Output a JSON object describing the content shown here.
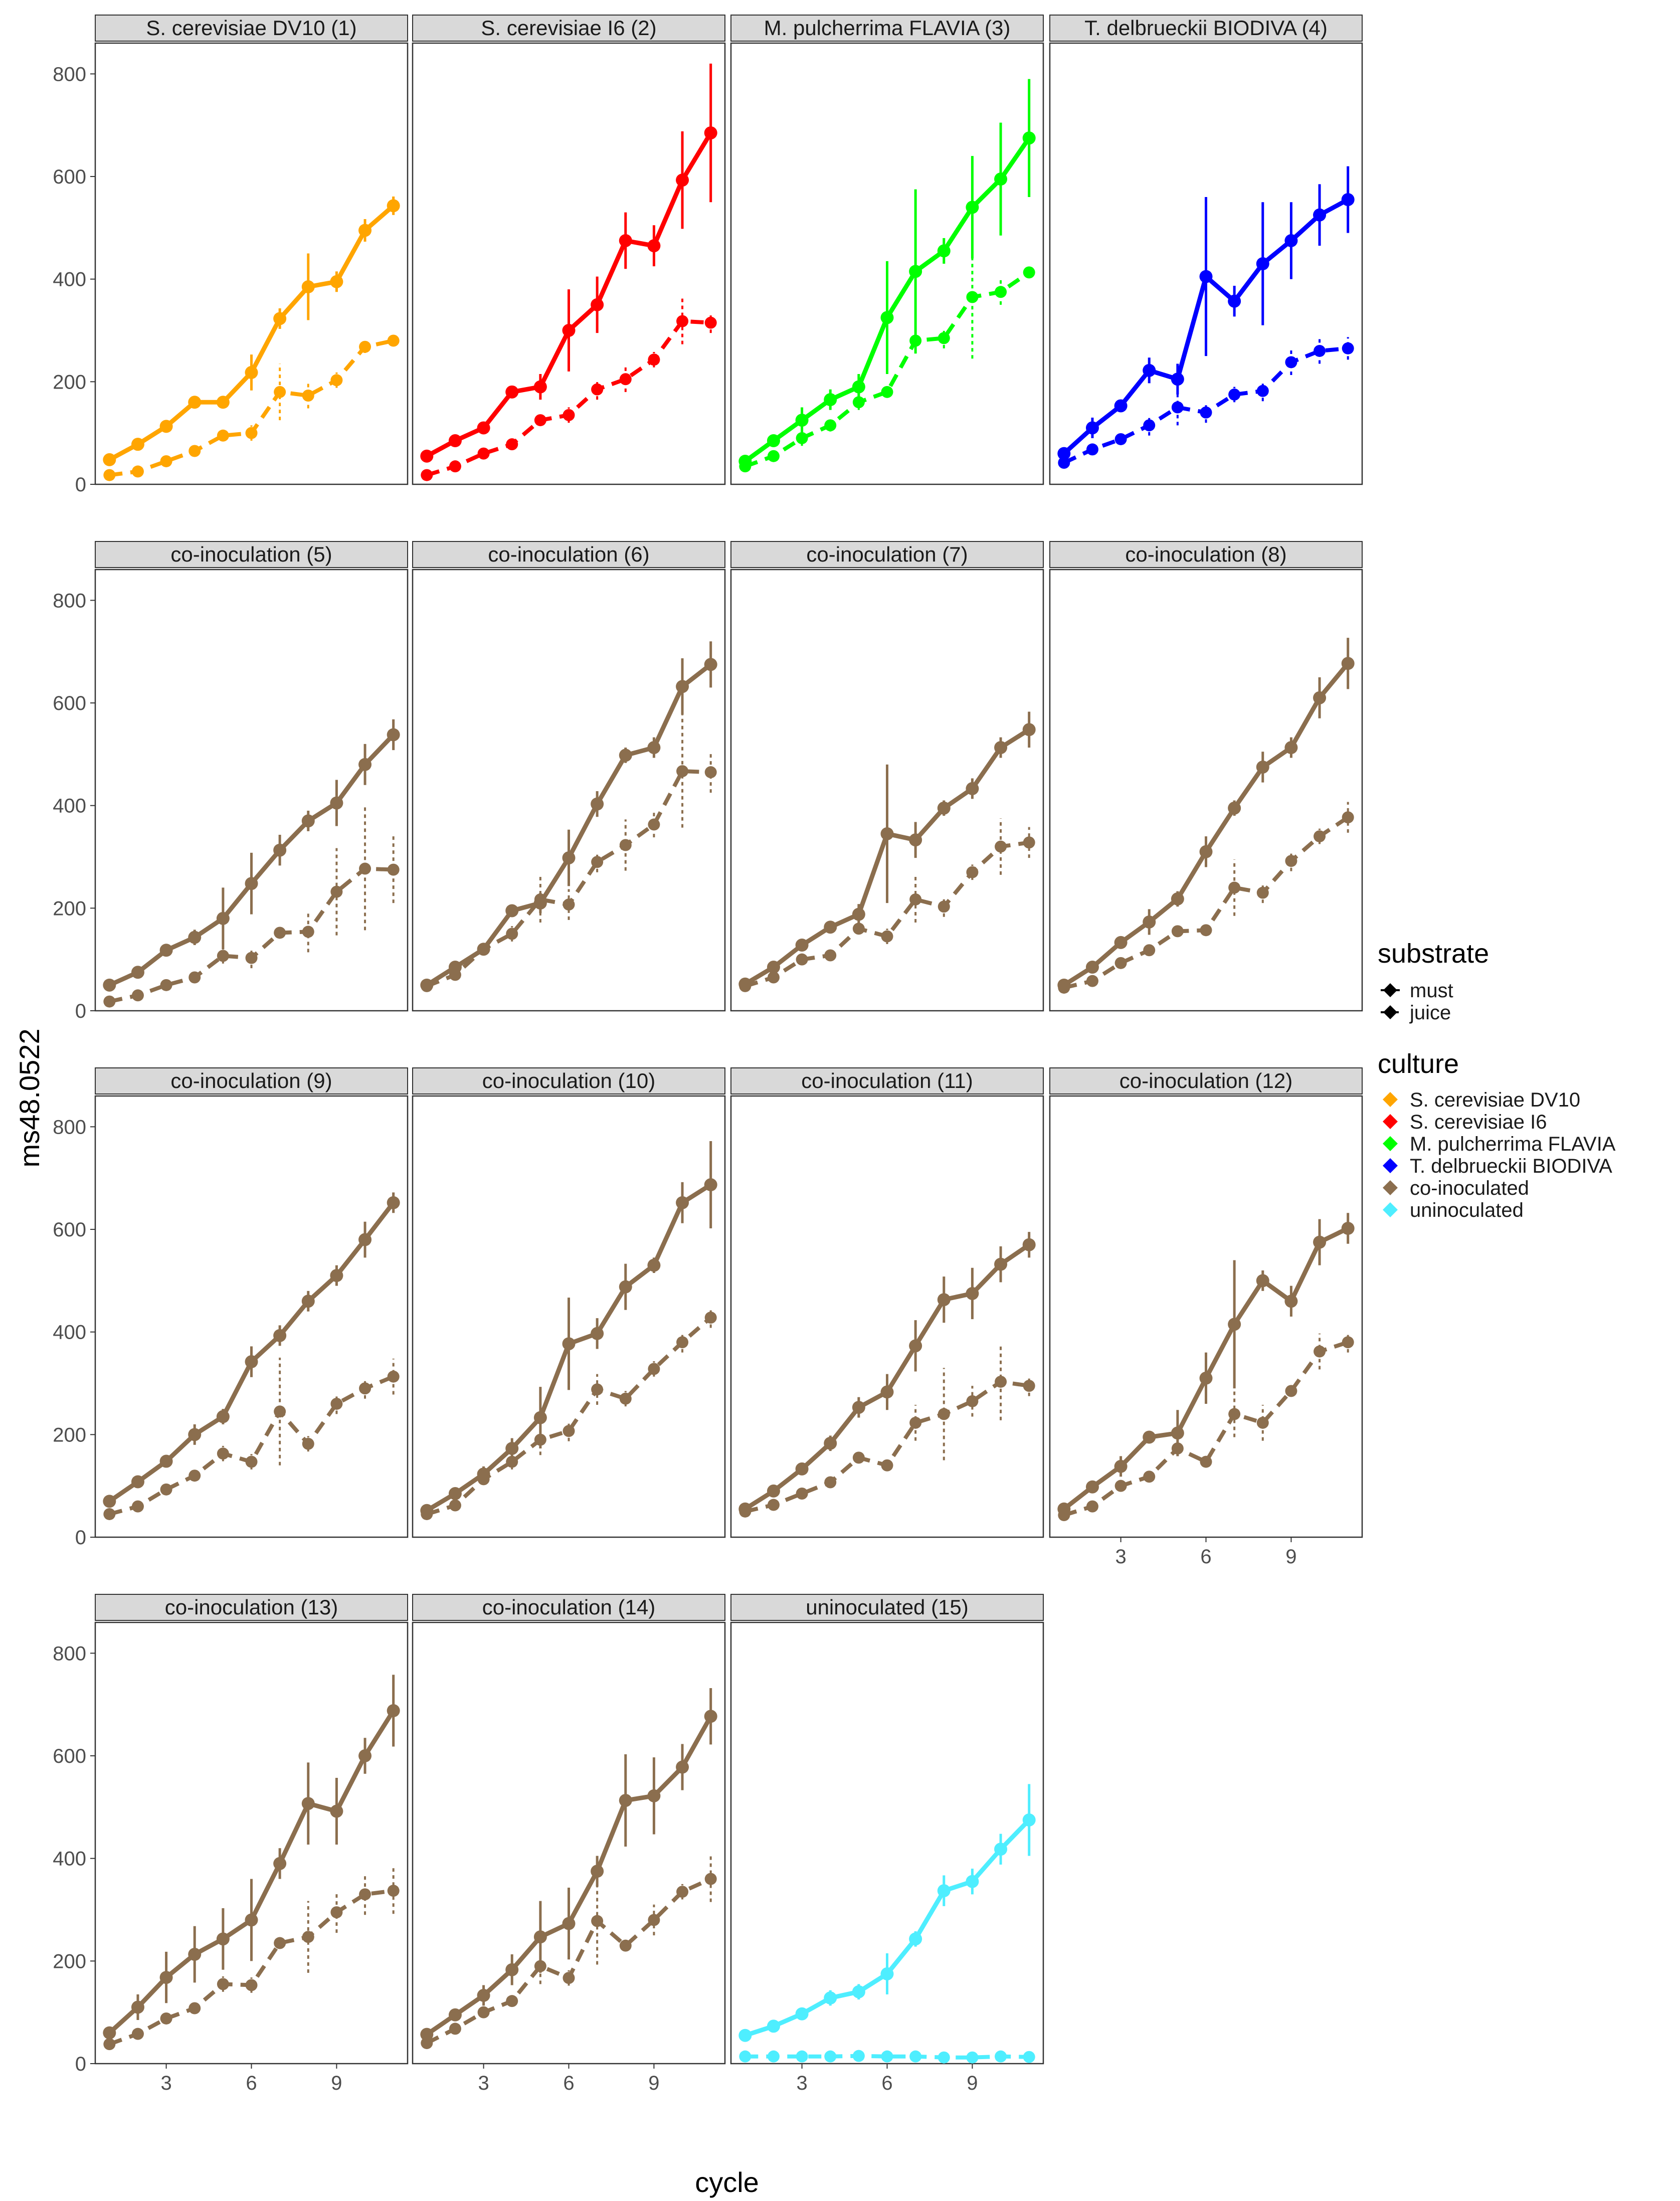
{
  "chart_data": {
    "type": "line",
    "facets": [
      {
        "title": "S. cerevisiae DV10 (1)",
        "culture": "S. cerevisiae DV10",
        "must": [
          48,
          78,
          113,
          160,
          160,
          218,
          323,
          385,
          395,
          495,
          543
        ],
        "must_err": [
          5,
          6,
          10,
          12,
          10,
          35,
          20,
          65,
          20,
          22,
          18
        ],
        "juice": [
          18,
          25,
          45,
          65,
          95,
          100,
          180,
          173,
          203,
          268,
          280
        ],
        "juice_err": [
          3,
          4,
          5,
          6,
          8,
          15,
          55,
          25,
          15,
          12,
          10
        ]
      },
      {
        "title": "S. cerevisiae I6 (2)",
        "culture": "S. cerevisiae I6",
        "must": [
          55,
          85,
          110,
          180,
          190,
          300,
          350,
          475,
          465,
          593,
          685
        ],
        "must_err": [
          5,
          6,
          10,
          10,
          25,
          80,
          55,
          55,
          40,
          95,
          135
        ],
        "juice": [
          18,
          35,
          60,
          78,
          125,
          135,
          185,
          205,
          243,
          318,
          315
        ],
        "juice_err": [
          2,
          4,
          8,
          6,
          8,
          15,
          20,
          25,
          15,
          45,
          20
        ]
      },
      {
        "title": "M. pulcherrima FLAVIA (3)",
        "culture": "M. pulcherrima FLAVIA",
        "must": [
          45,
          85,
          125,
          165,
          190,
          325,
          415,
          455,
          540,
          595,
          675
        ],
        "must_err": [
          10,
          12,
          25,
          20,
          25,
          110,
          160,
          25,
          100,
          110,
          115
        ],
        "juice": [
          35,
          55,
          90,
          115,
          160,
          180,
          280,
          285,
          365,
          375,
          413
        ],
        "juice_err": [
          6,
          10,
          15,
          12,
          15,
          10,
          25,
          20,
          120,
          25,
          10
        ]
      },
      {
        "title": "T. delbrueckii BIODIVA (4)",
        "culture": "T. delbrueckii BIODIVA",
        "must": [
          60,
          110,
          153,
          222,
          205,
          405,
          357,
          430,
          475,
          525,
          555
        ],
        "must_err": [
          5,
          20,
          10,
          25,
          30,
          155,
          30,
          120,
          75,
          60,
          65
        ],
        "juice": [
          42,
          68,
          88,
          115,
          150,
          140,
          175,
          182,
          238,
          260,
          265
        ],
        "juice_err": [
          4,
          10,
          8,
          20,
          35,
          20,
          15,
          20,
          25,
          25,
          22
        ]
      },
      {
        "title": "co-inoculation (5)",
        "culture": "co-inoculated",
        "must": [
          50,
          75,
          118,
          143,
          180,
          248,
          313,
          370,
          405,
          480,
          538
        ],
        "must_err": [
          6,
          8,
          12,
          15,
          60,
          60,
          30,
          20,
          45,
          40,
          30
        ],
        "juice": [
          18,
          30,
          50,
          65,
          107,
          103,
          152,
          154,
          232,
          277,
          275
        ],
        "juice_err": [
          3,
          5,
          6,
          8,
          15,
          20,
          10,
          40,
          85,
          120,
          65
        ]
      },
      {
        "title": "co-inoculation (6)",
        "culture": "co-inoculated",
        "must": [
          50,
          85,
          120,
          195,
          210,
          298,
          403,
          498,
          513,
          632,
          675
        ],
        "must_err": [
          6,
          8,
          10,
          10,
          20,
          55,
          25,
          15,
          20,
          55,
          45
        ],
        "juice": [
          48,
          70,
          120,
          150,
          217,
          207,
          290,
          323,
          363,
          467,
          465
        ],
        "juice_err": [
          6,
          8,
          12,
          15,
          45,
          30,
          20,
          50,
          25,
          110,
          40
        ]
      },
      {
        "title": "co-inoculation (7)",
        "culture": "co-inoculated",
        "must": [
          52,
          85,
          128,
          163,
          188,
          345,
          333,
          395,
          433,
          513,
          548
        ],
        "must_err": [
          6,
          8,
          10,
          10,
          20,
          135,
          35,
          15,
          20,
          20,
          35
        ],
        "juice": [
          48,
          65,
          100,
          108,
          160,
          145,
          217,
          203,
          270,
          320,
          328
        ],
        "juice_err": [
          5,
          6,
          8,
          8,
          10,
          15,
          45,
          20,
          15,
          55,
          30
        ]
      },
      {
        "title": "co-inoculation (8)",
        "culture": "co-inoculated",
        "must": [
          50,
          85,
          133,
          173,
          218,
          310,
          395,
          475,
          513,
          610,
          677
        ],
        "must_err": [
          6,
          8,
          10,
          25,
          15,
          30,
          15,
          30,
          20,
          40,
          50
        ],
        "juice": [
          45,
          58,
          93,
          118,
          155,
          157,
          240,
          230,
          292,
          340,
          377
        ],
        "juice_err": [
          5,
          6,
          8,
          10,
          8,
          10,
          55,
          20,
          20,
          15,
          30
        ]
      },
      {
        "title": "co-inoculation (9)",
        "culture": "co-inoculated",
        "must": [
          70,
          108,
          148,
          200,
          235,
          342,
          393,
          460,
          510,
          580,
          652
        ],
        "must_err": [
          6,
          8,
          10,
          20,
          15,
          30,
          20,
          20,
          20,
          35,
          20
        ],
        "juice": [
          45,
          60,
          93,
          120,
          163,
          147,
          245,
          182,
          260,
          290,
          313
        ],
        "juice_err": [
          5,
          6,
          8,
          10,
          15,
          15,
          105,
          15,
          20,
          20,
          35
        ]
      },
      {
        "title": "co-inoculation (10)",
        "culture": "co-inoculated",
        "must": [
          52,
          85,
          123,
          173,
          233,
          377,
          397,
          488,
          530,
          652,
          687
        ],
        "must_err": [
          6,
          8,
          15,
          20,
          60,
          90,
          30,
          45,
          15,
          40,
          85
        ],
        "juice": [
          45,
          62,
          113,
          147,
          190,
          207,
          288,
          270,
          328,
          380,
          428
        ],
        "juice_err": [
          5,
          6,
          10,
          15,
          30,
          20,
          30,
          15,
          15,
          20,
          20
        ]
      },
      {
        "title": "co-inoculation (11)",
        "culture": "co-inoculated",
        "must": [
          55,
          90,
          133,
          183,
          253,
          283,
          373,
          463,
          475,
          532,
          570
        ],
        "must_err": [
          6,
          8,
          10,
          15,
          20,
          35,
          50,
          45,
          50,
          35,
          25
        ],
        "juice": [
          50,
          63,
          85,
          107,
          155,
          140,
          223,
          240,
          265,
          303,
          295
        ],
        "juice_err": [
          5,
          6,
          10,
          8,
          10,
          10,
          35,
          90,
          30,
          75,
          20
        ]
      },
      {
        "title": "co-inoculation (12)",
        "culture": "co-inoculated",
        "must": [
          55,
          98,
          138,
          195,
          203,
          310,
          415,
          500,
          460,
          575,
          602
        ],
        "must_err": [
          6,
          8,
          20,
          8,
          45,
          50,
          125,
          20,
          30,
          45,
          30
        ],
        "juice": [
          43,
          60,
          100,
          118,
          173,
          147,
          240,
          223,
          285,
          362,
          380
        ],
        "juice_err": [
          5,
          6,
          8,
          10,
          15,
          10,
          45,
          35,
          10,
          35,
          20
        ]
      },
      {
        "title": "co-inoculation (13)",
        "culture": "co-inoculated",
        "must": [
          60,
          110,
          168,
          213,
          243,
          280,
          390,
          507,
          492,
          600,
          688
        ],
        "must_err": [
          6,
          25,
          50,
          55,
          60,
          80,
          30,
          80,
          65,
          35,
          70
        ],
        "juice": [
          38,
          58,
          88,
          108,
          155,
          153,
          235,
          247,
          295,
          330,
          337
        ],
        "juice_err": [
          5,
          6,
          8,
          10,
          15,
          15,
          10,
          70,
          40,
          40,
          45
        ]
      },
      {
        "title": "co-inoculation (14)",
        "culture": "co-inoculated",
        "must": [
          57,
          95,
          133,
          183,
          247,
          273,
          375,
          513,
          522,
          578,
          677
        ],
        "must_err": [
          6,
          8,
          20,
          30,
          70,
          70,
          30,
          90,
          75,
          45,
          55
        ],
        "juice": [
          40,
          68,
          100,
          122,
          190,
          167,
          278,
          230,
          280,
          335,
          360
        ],
        "juice_err": [
          5,
          6,
          8,
          10,
          35,
          15,
          85,
          10,
          30,
          15,
          45
        ]
      },
      {
        "title": "uninoculated (15)",
        "culture": "uninoculated",
        "must": [
          55,
          73,
          97,
          128,
          140,
          175,
          243,
          337,
          355,
          418,
          475
        ],
        "must_err": [
          5,
          6,
          8,
          15,
          15,
          40,
          15,
          30,
          25,
          30,
          70
        ],
        "juice": [
          14,
          14,
          14,
          14,
          15,
          14,
          14,
          12,
          12,
          14,
          13
        ],
        "juice_err": [
          4,
          4,
          4,
          4,
          5,
          4,
          4,
          4,
          4,
          4,
          4
        ]
      }
    ],
    "x": [
      1,
      2,
      3,
      4,
      5,
      6,
      7,
      8,
      9,
      10,
      11
    ],
    "xlabel": "cycle",
    "ylabel": "ms48.0522",
    "ylim": [
      0,
      860
    ],
    "xlim": [
      0.5,
      11.5
    ],
    "x_ticks": [
      3,
      6,
      9
    ],
    "x_tick_labels": [
      "3",
      "6",
      "9"
    ],
    "y_ticks": [
      0,
      200,
      400,
      600,
      800
    ],
    "y_tick_labels": [
      "0",
      "200",
      "400",
      "600",
      "800"
    ],
    "legend": {
      "substrate_title": "substrate",
      "substrate_items": [
        {
          "label": "must",
          "linetype": "solid"
        },
        {
          "label": "juice",
          "linetype": "dashed"
        }
      ],
      "culture_title": "culture",
      "culture_items": [
        {
          "label": "S. cerevisiae DV10",
          "color": "#FFA500"
        },
        {
          "label": "S. cerevisiae I6",
          "color": "#FF0000"
        },
        {
          "label": "M. pulcherrima FLAVIA",
          "color": "#00FF00"
        },
        {
          "label": "T. delbrueckii BIODIVA",
          "color": "#0000FF"
        },
        {
          "label": "co-inoculated",
          "color": "#8B6E4E"
        },
        {
          "label": "uninoculated",
          "color": "#4EEEFF"
        }
      ]
    }
  },
  "colors": {
    "S. cerevisiae DV10": "#FFA500",
    "S. cerevisiae I6": "#FF0000",
    "M. pulcherrima FLAVIA": "#00FF00",
    "T. delbrueckii BIODIVA": "#0000FF",
    "co-inoculated": "#8B6E4E",
    "uninoculated": "#4EEEFF",
    "strip_fill": "#D9D9D9",
    "panel_border": "#333333"
  }
}
